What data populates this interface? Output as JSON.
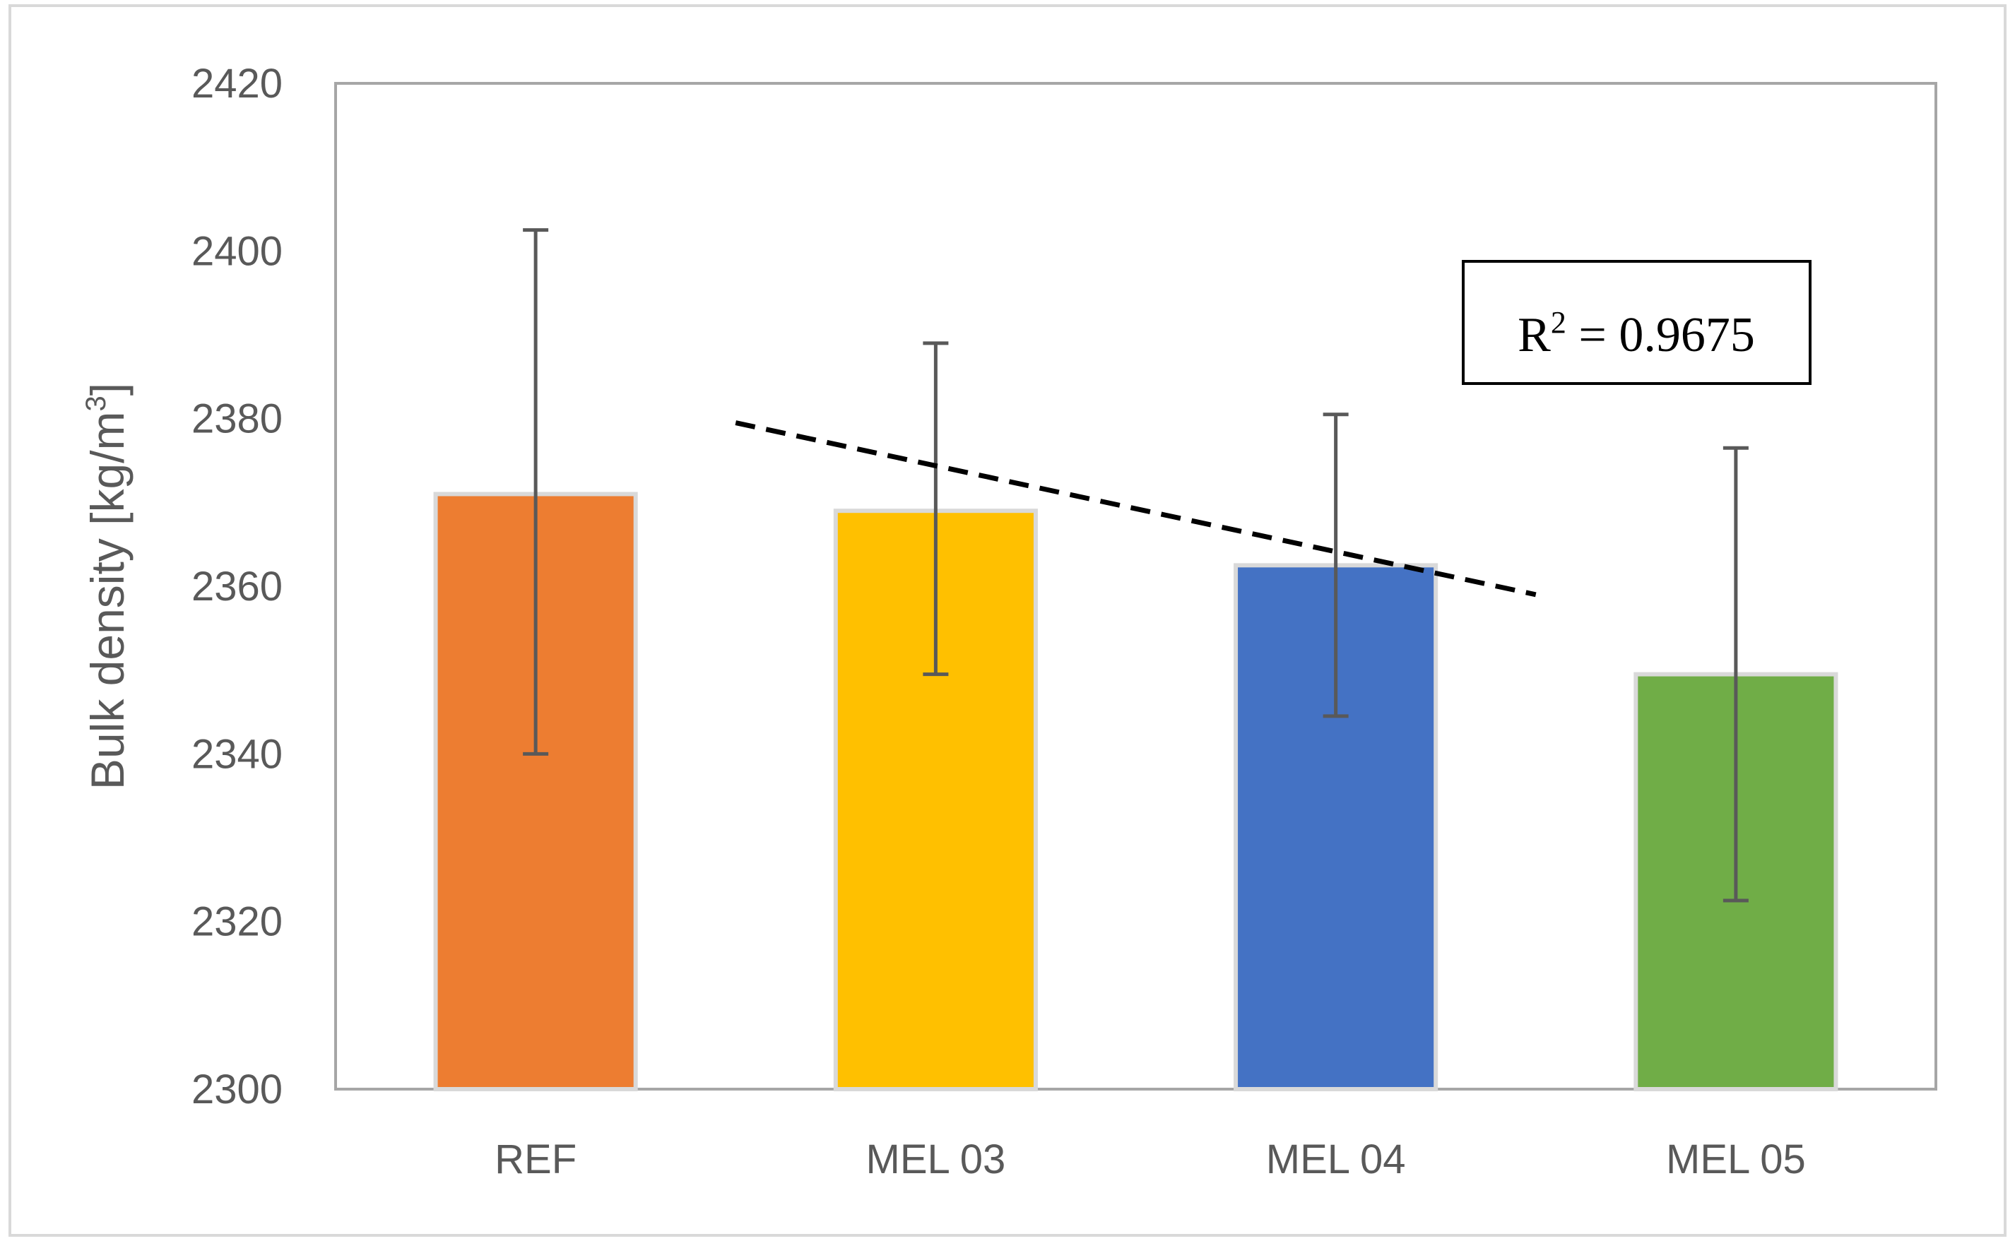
{
  "chart_data": {
    "type": "bar",
    "categories": [
      "REF",
      "MEL 03",
      "MEL 04",
      "MEL 05"
    ],
    "values": [
      2371,
      2369,
      2362.5,
      2349.5
    ],
    "error_plus": [
      31.5,
      20,
      18,
      27
    ],
    "error_minus": [
      31,
      19.5,
      18,
      27
    ],
    "colors": [
      "#ED7D31",
      "#FFC000",
      "#4472C4",
      "#70AD47"
    ],
    "ylabel_main": "Bulk density [kg/m",
    "ylabel_sup": "3",
    "ylabel_tail": "]",
    "xlabel": "",
    "title": "",
    "ylim": [
      2300,
      2420
    ],
    "yticks": [
      2300,
      2320,
      2340,
      2360,
      2380,
      2400,
      2420
    ],
    "trendline": {
      "style": "dashed",
      "x_start": 0.5,
      "x_end": 2.5,
      "y_start": 2379.5,
      "y_end": 2359,
      "r2_label_main": "R",
      "r2_label_sup": "2",
      "r2_label_tail": " = 0.9675"
    }
  }
}
